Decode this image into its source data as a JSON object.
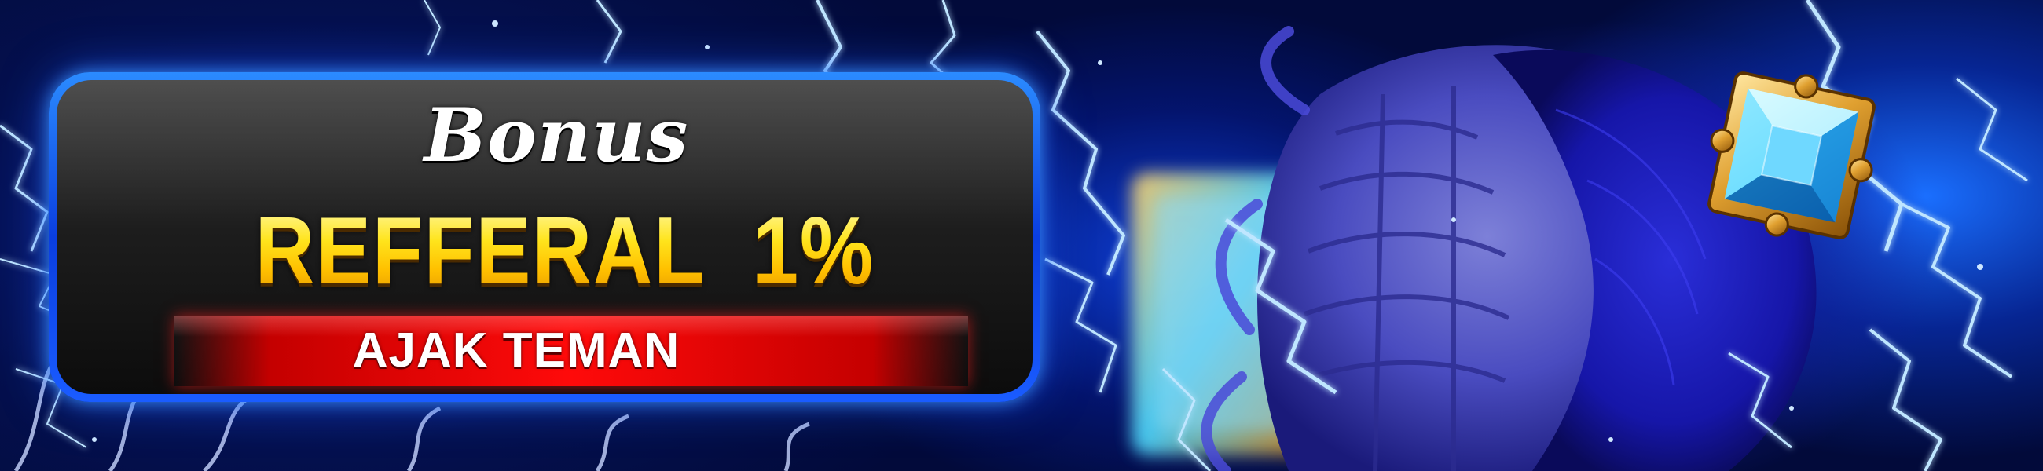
{
  "banner": {
    "script_word": "Bonus",
    "headline": "REFFERAL  1%",
    "subline": "AJAK TEMAN"
  },
  "colors": {
    "background": "#0a2fd0",
    "panel_border": "#1a5cff",
    "panel_fill": "#1e1e1e",
    "headline_yellow": "#ffe21a",
    "ribbon_red": "#ff0a0a",
    "gem_gold": "#d89a2a",
    "gem_cyan": "#5fe6ff"
  },
  "icons": {
    "gem": "square-jewel-gold-frame",
    "effects": "lightning-bolts"
  }
}
